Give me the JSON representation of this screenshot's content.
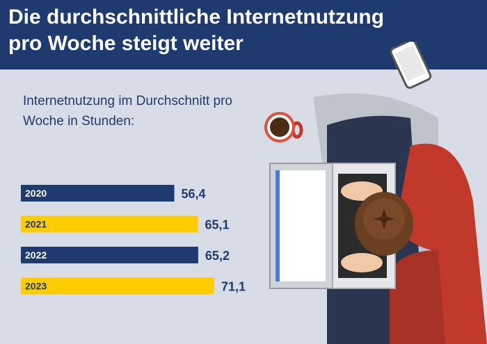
{
  "header": {
    "title_line1": "Die durchschnittliche Internetnutzung",
    "title_line2": "pro Woche steigt weiter"
  },
  "colors": {
    "header_bg": "#1f3a6e",
    "bar_dark": "#1f3a6e",
    "bar_yellow": "#ffcc00",
    "background": "#d8dce6"
  },
  "chart_data": {
    "type": "bar",
    "orientation": "horizontal",
    "title": "Internetnutzung im Durchschnitt pro Woche in Stunden:",
    "categories": [
      "2020",
      "2021",
      "2022",
      "2023"
    ],
    "values": [
      56.4,
      65.1,
      65.2,
      71.1
    ],
    "value_labels": [
      "56,4",
      "65,1",
      "65,2",
      "71,1"
    ],
    "bar_colors": [
      "#1f3a6e",
      "#ffcc00",
      "#1f3a6e",
      "#ffcc00"
    ],
    "xlim": [
      0,
      71.1
    ],
    "grid": false,
    "legend": "none"
  },
  "illustration": {
    "description_icon": "person-at-laptop-icon",
    "items": [
      "smartphone-icon",
      "coffee-cup-icon",
      "laptop-icon"
    ]
  }
}
